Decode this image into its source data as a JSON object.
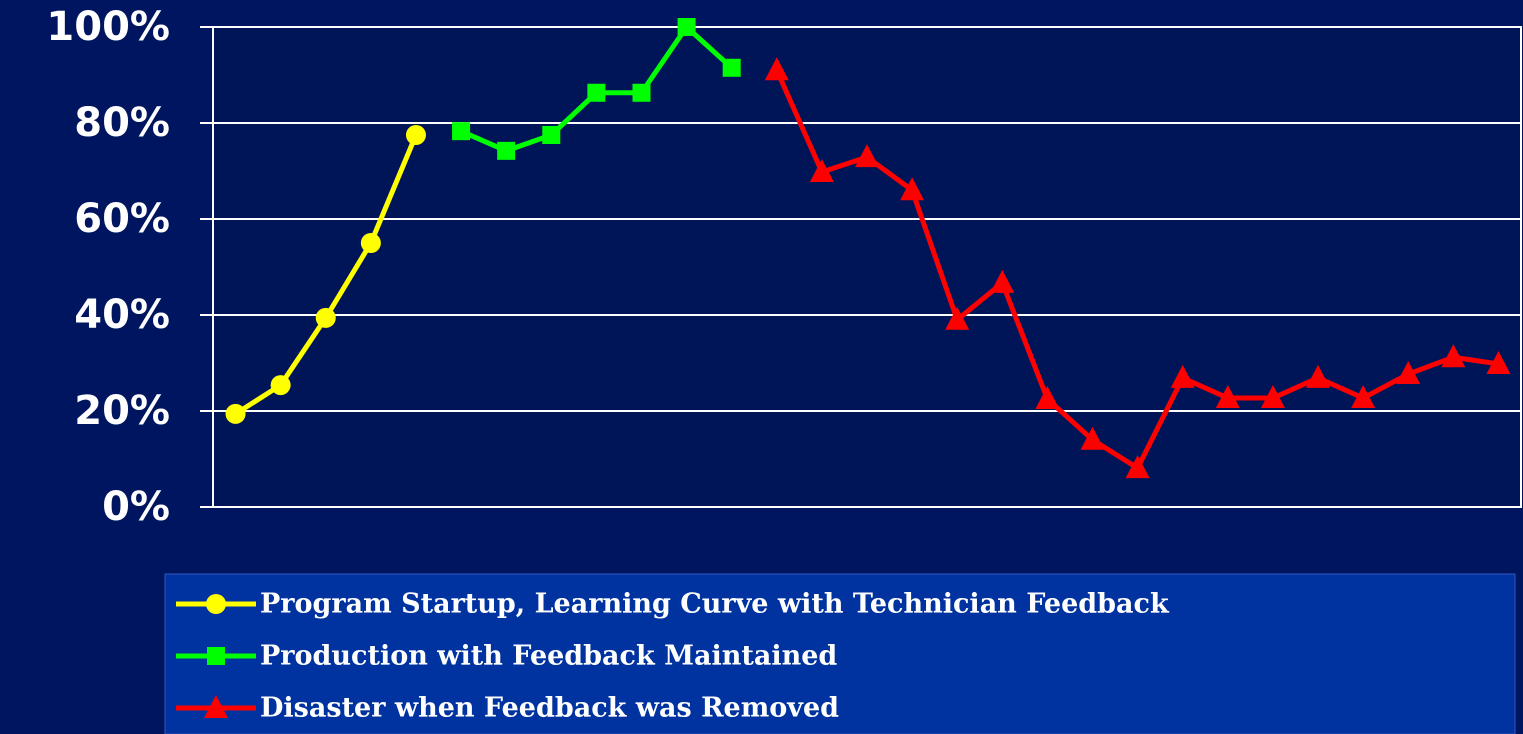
{
  "chart_data": {
    "type": "line",
    "categories": [
      null,
      null,
      null,
      null,
      null,
      null,
      null,
      null,
      null,
      null,
      null,
      null,
      null,
      null,
      null,
      null,
      null,
      null,
      null,
      null,
      null,
      null,
      null,
      null,
      null,
      null,
      null,
      null,
      null
    ],
    "series": [
      {
        "name": "Program Startup, Learning Curve with Technician Feedback",
        "color": "#ffff00",
        "marker": "circle",
        "values": [
          19.4,
          25.4,
          39.4,
          55,
          77.5,
          null,
          null,
          null,
          null,
          null,
          null,
          null,
          null,
          null,
          null,
          null,
          null,
          null,
          null,
          null,
          null,
          null,
          null,
          null,
          null,
          null,
          null,
          null,
          null
        ]
      },
      {
        "name": "Production with Feedback Maintained",
        "color": "#00ff00",
        "marker": "square",
        "values": [
          null,
          null,
          null,
          null,
          null,
          78.3,
          74.2,
          77.5,
          86.3,
          86.3,
          100,
          91.5,
          null,
          null,
          null,
          null,
          null,
          null,
          null,
          null,
          null,
          null,
          null,
          null,
          null,
          null,
          null,
          null,
          null
        ]
      },
      {
        "name": "Disaster when Feedback was Removed",
        "color": "#ff0000",
        "marker": "triangle",
        "values": [
          null,
          null,
          null,
          null,
          null,
          null,
          null,
          null,
          null,
          null,
          null,
          null,
          91,
          69.8,
          72.9,
          66,
          39,
          46.7,
          22.5,
          14,
          8.1,
          26.9,
          22.7,
          22.7,
          26.9,
          22.7,
          27.7,
          31.2,
          29.8
        ]
      }
    ],
    "ylim": [
      0,
      100
    ],
    "yticks": [
      {
        "value": 0,
        "label": "0%"
      },
      {
        "value": 20,
        "label": "20%"
      },
      {
        "value": 40,
        "label": "40%"
      },
      {
        "value": 60,
        "label": "60%"
      },
      {
        "value": 80,
        "label": "80%"
      },
      {
        "value": 100,
        "label": "100%"
      }
    ],
    "grid": true,
    "legend": "bottom"
  }
}
